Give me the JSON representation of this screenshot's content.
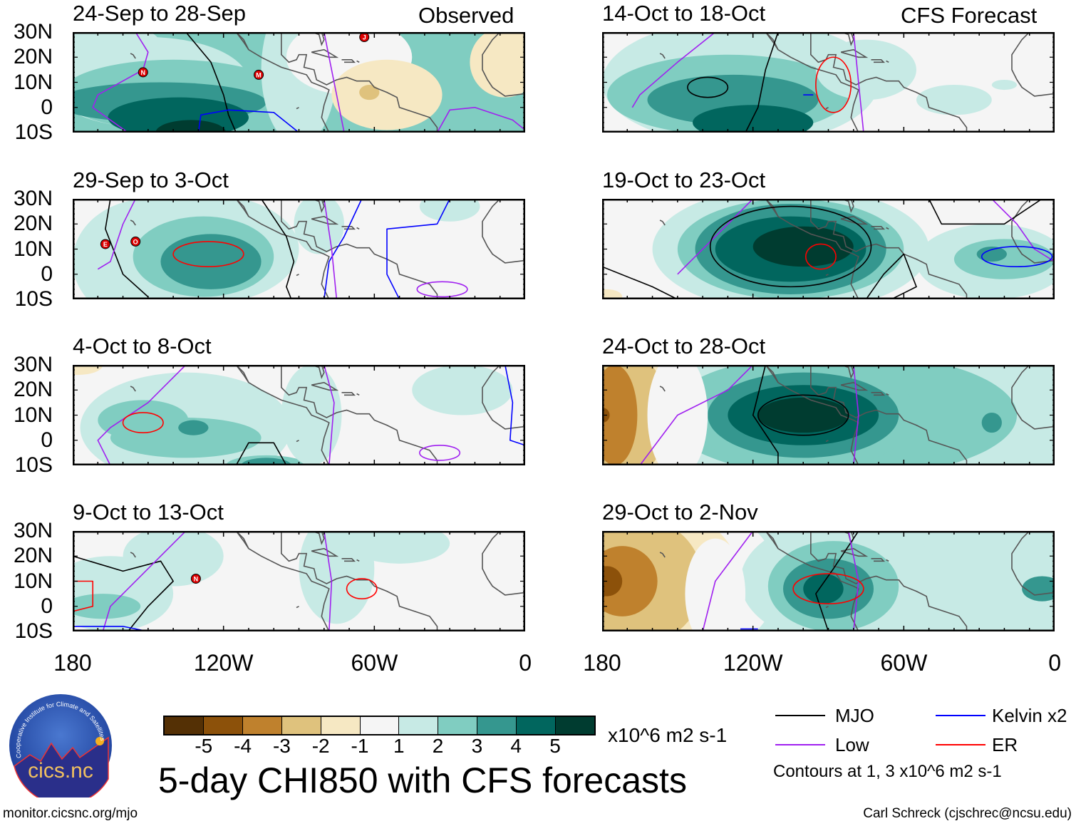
{
  "header": {
    "observed_label": "Observed",
    "forecast_label": "CFS Forecast"
  },
  "panels": [
    {
      "title": "24-Sep to 28-Sep",
      "storms": [
        "N",
        "M",
        "J"
      ]
    },
    {
      "title": "29-Sep to 3-Oct",
      "storms": [
        "E",
        "O"
      ]
    },
    {
      "title": "4-Oct to 8-Oct",
      "storms": []
    },
    {
      "title": "9-Oct to 13-Oct",
      "storms": [
        "N"
      ]
    },
    {
      "title": "14-Oct to 18-Oct",
      "storms": []
    },
    {
      "title": "19-Oct to 23-Oct",
      "storms": []
    },
    {
      "title": "24-Oct to 28-Oct",
      "storms": []
    },
    {
      "title": "29-Oct to 2-Nov",
      "storms": []
    }
  ],
  "axes": {
    "lat_labels": [
      "30N",
      "20N",
      "10N",
      "0",
      "10S"
    ],
    "lon_labels": [
      "180",
      "120W",
      "60W",
      "0"
    ]
  },
  "colorbar": {
    "colors": [
      "#543005",
      "#8c510a",
      "#bf812d",
      "#dfc27d",
      "#f6e8c3",
      "#f5f5f5",
      "#c7eae5",
      "#80cdc1",
      "#35978f",
      "#01665e",
      "#003c30"
    ],
    "labels": [
      "-5",
      "-4",
      "-3",
      "-2",
      "-1",
      "1",
      "2",
      "3",
      "4",
      "5"
    ],
    "units": "x10^6 m2 s-1"
  },
  "title": "5-day CHI850 with CFS forecasts",
  "legend": {
    "items": [
      {
        "label": "MJO",
        "color": "#000000"
      },
      {
        "label": "Kelvin x2",
        "color": "#0000ff"
      },
      {
        "label": "Low",
        "color": "#a020f0"
      },
      {
        "label": "ER",
        "color": "#ff0000"
      }
    ],
    "note": "Contours at 1, 3 x10^6 m2 s-1"
  },
  "logo": {
    "text": "cics.nc",
    "ring_text": "Cooperative Institute for Climate and Satellites"
  },
  "footer": {
    "left": "monitor.cicsnc.org/mjo",
    "right": "Carl Schreck (cjschrec@ncsu.edu)"
  }
}
